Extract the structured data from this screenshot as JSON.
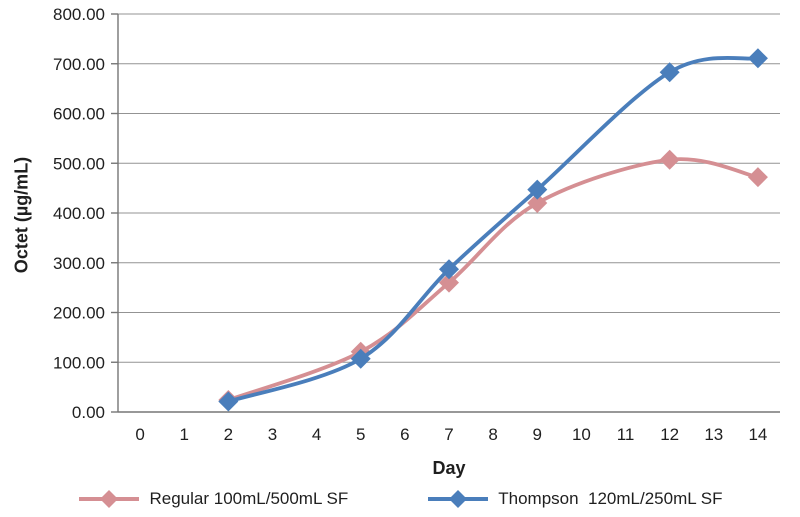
{
  "chart_data": {
    "type": "line",
    "title": "",
    "xlabel": "Day",
    "ylabel": "Octet (µg/mL)",
    "categories": [
      "0",
      "1",
      "2",
      "3",
      "4",
      "5",
      "6",
      "7",
      "8",
      "9",
      "10",
      "11",
      "12",
      "13",
      "14"
    ],
    "y_ticks": [
      "0.00",
      "100.00",
      "200.00",
      "300.00",
      "400.00",
      "500.00",
      "600.00",
      "700.00",
      "800.00"
    ],
    "ylim": [
      0,
      800
    ],
    "grid": true,
    "smooth": true,
    "marker": "diamond",
    "legend_position": "bottom",
    "series": [
      {
        "name": "Regular 100mL/500mL SF",
        "color": "#D58F93",
        "days": [
          2,
          5,
          7,
          9,
          12,
          14
        ],
        "values": [
          24,
          121,
          260,
          420,
          507,
          472
        ]
      },
      {
        "name": "Thompson  120mL/250mL SF",
        "color": "#4A7EBB",
        "days": [
          2,
          5,
          7,
          9,
          12,
          14
        ],
        "values": [
          21,
          107,
          287,
          447,
          683,
          711
        ]
      }
    ]
  },
  "theme": {
    "background": "#FFFFFF",
    "grid_color": "#939393",
    "axis_color": "#767676",
    "text_color": "#1F1F1F"
  }
}
